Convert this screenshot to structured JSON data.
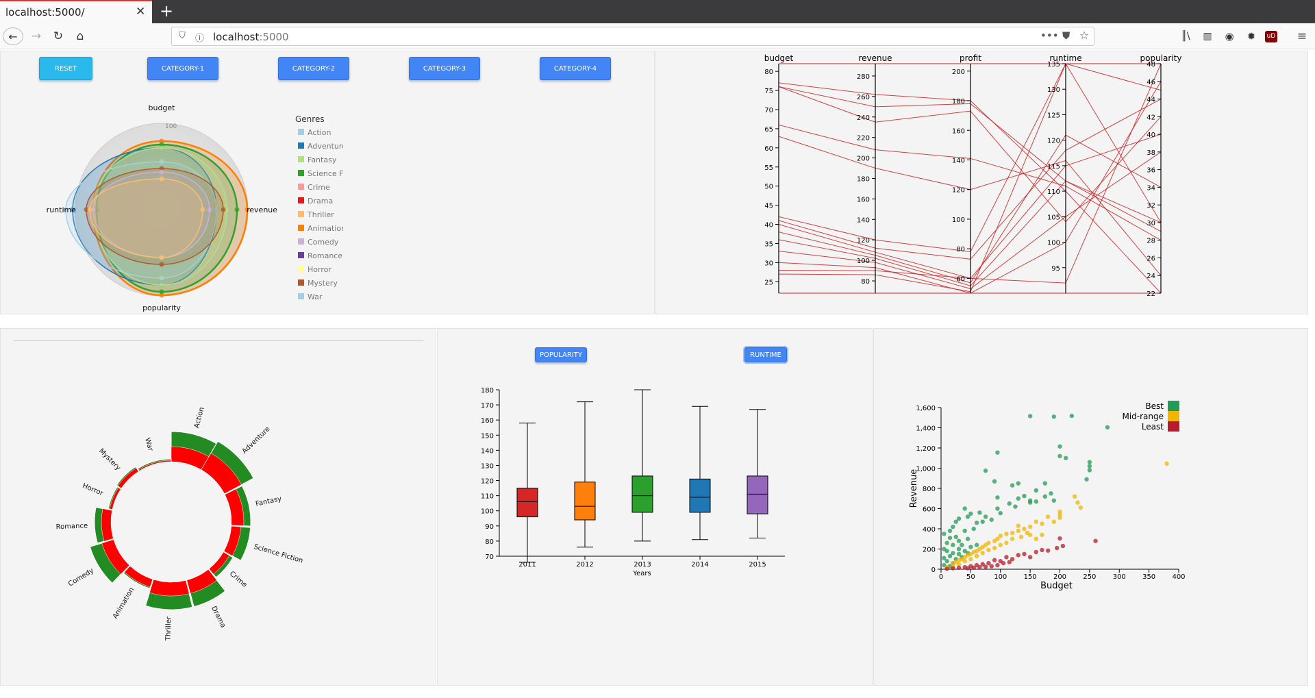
{
  "browser": {
    "tab_title": "localhost:5000/",
    "url_host": "localhost",
    "url_port": ":5000"
  },
  "buttons": {
    "reset": "RESET",
    "cat1": "CATEGORY-1",
    "cat2": "CATEGORY-2",
    "cat3": "CATEGORY-3",
    "cat4": "CATEGORY-4",
    "popularity": "POPULARITY",
    "runtime": "RUNTIME"
  },
  "radar": {
    "axes": [
      "budget",
      "revenue",
      "popularity",
      "runtime"
    ],
    "ticks": [
      "100"
    ],
    "legend_title": "Genres",
    "genres": [
      {
        "name": "Action",
        "color": "#a6cee3"
      },
      {
        "name": "Adventure",
        "color": "#1f78b4"
      },
      {
        "name": "Fantasy",
        "color": "#b2df8a"
      },
      {
        "name": "Science Fiction",
        "color": "#33a02c"
      },
      {
        "name": "Crime",
        "color": "#fb9a99"
      },
      {
        "name": "Drama",
        "color": "#e31a1c"
      },
      {
        "name": "Thriller",
        "color": "#fdbf6f"
      },
      {
        "name": "Animation",
        "color": "#ff7f00"
      },
      {
        "name": "Comedy",
        "color": "#cab2d6"
      },
      {
        "name": "Romance",
        "color": "#6a3d9a"
      },
      {
        "name": "Horror",
        "color": "#ffff99"
      },
      {
        "name": "Mystery",
        "color": "#b15928"
      },
      {
        "name": "War",
        "color": "#a6cee3"
      }
    ]
  },
  "parallel": {
    "axes": [
      {
        "name": "budget",
        "ticks": [
          "25",
          "30",
          "35",
          "40",
          "45",
          "50",
          "55",
          "60",
          "65",
          "70",
          "75",
          "80"
        ]
      },
      {
        "name": "revenue",
        "ticks": [
          "80",
          "100",
          "120",
          "140",
          "160",
          "180",
          "200",
          "220",
          "240",
          "260",
          "280"
        ]
      },
      {
        "name": "profit",
        "ticks": [
          "60",
          "80",
          "100",
          "120",
          "140",
          "160",
          "180",
          "200"
        ]
      },
      {
        "name": "runtime",
        "ticks": [
          "95",
          "100",
          "105",
          "110",
          "115",
          "120",
          "125",
          "130",
          "135"
        ]
      },
      {
        "name": "popularity",
        "ticks": [
          "22",
          "24",
          "26",
          "28",
          "30",
          "32",
          "34",
          "36",
          "38",
          "40",
          "42",
          "44",
          "46",
          "48"
        ]
      }
    ]
  },
  "genre_wheel": {
    "labels": [
      "Action",
      "Adventure",
      "Fantasy",
      "Science Fiction",
      "Crime",
      "Drama",
      "Thriller",
      "Animation",
      "Comedy",
      "Romance",
      "Horror",
      "Mystery",
      "War"
    ],
    "outer_color": "#228b22",
    "inner_color": "#ff0000"
  },
  "chart_data": [
    {
      "type": "box",
      "x": [
        "2011",
        "2012",
        "2013",
        "2014",
        "2015"
      ],
      "xlabel": "Years",
      "ylabel": "",
      "ylim": [
        70,
        180
      ],
      "yticks": [
        "70",
        "80",
        "90",
        "100",
        "110",
        "120",
        "130",
        "140",
        "150",
        "160",
        "170",
        "180"
      ],
      "boxes": [
        {
          "min": 66,
          "q1": 96,
          "median": 106,
          "q3": 115,
          "max": 158,
          "color": "#d62728"
        },
        {
          "min": 76,
          "q1": 94,
          "median": 103,
          "q3": 119,
          "max": 172,
          "color": "#ff7f0e"
        },
        {
          "min": 80,
          "q1": 99,
          "median": 110,
          "q3": 123,
          "max": 180,
          "color": "#2ca02c"
        },
        {
          "min": 81,
          "q1": 99,
          "median": 109,
          "q3": 121,
          "max": 169,
          "color": "#1f77b4"
        },
        {
          "min": 82,
          "q1": 98,
          "median": 111,
          "q3": 123,
          "max": 167,
          "color": "#9467bd"
        }
      ]
    },
    {
      "type": "scatter",
      "xlabel": "Budget",
      "ylabel": "Revenue",
      "xlim": [
        0,
        400
      ],
      "ylim": [
        0,
        1600
      ],
      "xticks": [
        "0",
        "50",
        "100",
        "150",
        "200",
        "250",
        "300",
        "350",
        "400"
      ],
      "yticks": [
        "0",
        "200",
        "400",
        "600",
        "800",
        "1,000",
        "1,200",
        "1,400",
        "1,600"
      ],
      "legend": [
        {
          "name": "Best",
          "color": "#239b56"
        },
        {
          "name": "Mid-range",
          "color": "#f4b400"
        },
        {
          "name": "Least",
          "color": "#b71c2c"
        }
      ],
      "series": [
        {
          "name": "Best",
          "points": [
            [
              150,
              1515
            ],
            [
              190,
              1510
            ],
            [
              220,
              1518
            ],
            [
              280,
              1405
            ],
            [
              200,
              1215
            ],
            [
              210,
              1100
            ],
            [
              200,
              1120
            ],
            [
              250,
              1060
            ],
            [
              250,
              1020
            ],
            [
              250,
              980
            ],
            [
              245,
              890
            ],
            [
              95,
              1155
            ],
            [
              75,
              975
            ],
            [
              90,
              870
            ],
            [
              130,
              850
            ],
            [
              120,
              830
            ],
            [
              175,
              850
            ],
            [
              160,
              780
            ],
            [
              140,
              725
            ],
            [
              130,
              700
            ],
            [
              95,
              710
            ],
            [
              115,
              650
            ],
            [
              125,
              620
            ],
            [
              150,
              680
            ],
            [
              150,
              660
            ],
            [
              160,
              670
            ],
            [
              175,
              720
            ],
            [
              190,
              680
            ],
            [
              185,
              750
            ],
            [
              95,
              600
            ],
            [
              100,
              555
            ],
            [
              85,
              490
            ],
            [
              70,
              470
            ],
            [
              60,
              460
            ],
            [
              75,
              520
            ],
            [
              65,
              560
            ],
            [
              40,
              600
            ],
            [
              50,
              550
            ],
            [
              45,
              520
            ],
            [
              30,
              500
            ],
            [
              25,
              470
            ],
            [
              20,
              420
            ],
            [
              15,
              380
            ],
            [
              5,
              350
            ],
            [
              15,
              310
            ],
            [
              25,
              320
            ],
            [
              40,
              380
            ],
            [
              55,
              400
            ],
            [
              30,
              280
            ],
            [
              10,
              260
            ],
            [
              20,
              240
            ],
            [
              35,
              240
            ],
            [
              45,
              300
            ],
            [
              5,
              200
            ],
            [
              10,
              180
            ],
            [
              20,
              160
            ],
            [
              30,
              150
            ],
            [
              15,
              130
            ],
            [
              5,
              110
            ],
            [
              25,
              100
            ],
            [
              35,
              120
            ],
            [
              10,
              80
            ],
            [
              20,
              60
            ],
            [
              5,
              40
            ],
            [
              15,
              30
            ],
            [
              40,
              180
            ],
            [
              50,
              220
            ],
            [
              60,
              240
            ],
            [
              45,
              160
            ],
            [
              30,
              200
            ]
          ]
        },
        {
          "name": "Mid-range",
          "points": [
            [
              380,
              1045
            ],
            [
              230,
              660
            ],
            [
              235,
              610
            ],
            [
              225,
              720
            ],
            [
              200,
              570
            ],
            [
              200,
              540
            ],
            [
              200,
              510
            ],
            [
              180,
              520
            ],
            [
              160,
              470
            ],
            [
              170,
              450
            ],
            [
              150,
              420
            ],
            [
              140,
              400
            ],
            [
              130,
              380
            ],
            [
              120,
              360
            ],
            [
              110,
              350
            ],
            [
              100,
              330
            ],
            [
              95,
              300
            ],
            [
              90,
              280
            ],
            [
              80,
              260
            ],
            [
              75,
              240
            ],
            [
              70,
              220
            ],
            [
              65,
              200
            ],
            [
              60,
              180
            ],
            [
              55,
              170
            ],
            [
              50,
              150
            ],
            [
              45,
              140
            ],
            [
              40,
              120
            ],
            [
              35,
              100
            ],
            [
              30,
              90
            ],
            [
              25,
              70
            ],
            [
              20,
              60
            ],
            [
              110,
              260
            ],
            [
              120,
              300
            ],
            [
              135,
              320
            ],
            [
              150,
              340
            ],
            [
              100,
              240
            ],
            [
              90,
              210
            ],
            [
              80,
              190
            ],
            [
              70,
              160
            ],
            [
              60,
              130
            ],
            [
              50,
              100
            ],
            [
              40,
              80
            ],
            [
              30,
              50
            ],
            [
              20,
              30
            ],
            [
              10,
              20
            ],
            [
              170,
              340
            ],
            [
              160,
              300
            ],
            [
              145,
              360
            ],
            [
              190,
              470
            ],
            [
              130,
              430
            ]
          ]
        },
        {
          "name": "Least",
          "points": [
            [
              260,
              280
            ],
            [
              200,
              305
            ],
            [
              180,
              185
            ],
            [
              195,
              210
            ],
            [
              205,
              230
            ],
            [
              170,
              190
            ],
            [
              150,
              120
            ],
            [
              140,
              150
            ],
            [
              120,
              100
            ],
            [
              110,
              120
            ],
            [
              100,
              80
            ],
            [
              90,
              90
            ],
            [
              80,
              60
            ],
            [
              70,
              50
            ],
            [
              60,
              40
            ],
            [
              50,
              30
            ],
            [
              40,
              20
            ],
            [
              30,
              15
            ],
            [
              20,
              10
            ],
            [
              10,
              5
            ],
            [
              130,
              140
            ],
            [
              115,
              70
            ],
            [
              95,
              40
            ],
            [
              85,
              30
            ],
            [
              75,
              25
            ],
            [
              65,
              20
            ],
            [
              55,
              15
            ],
            [
              45,
              10
            ],
            [
              160,
              170
            ],
            [
              105,
              60
            ]
          ]
        }
      ]
    }
  ]
}
